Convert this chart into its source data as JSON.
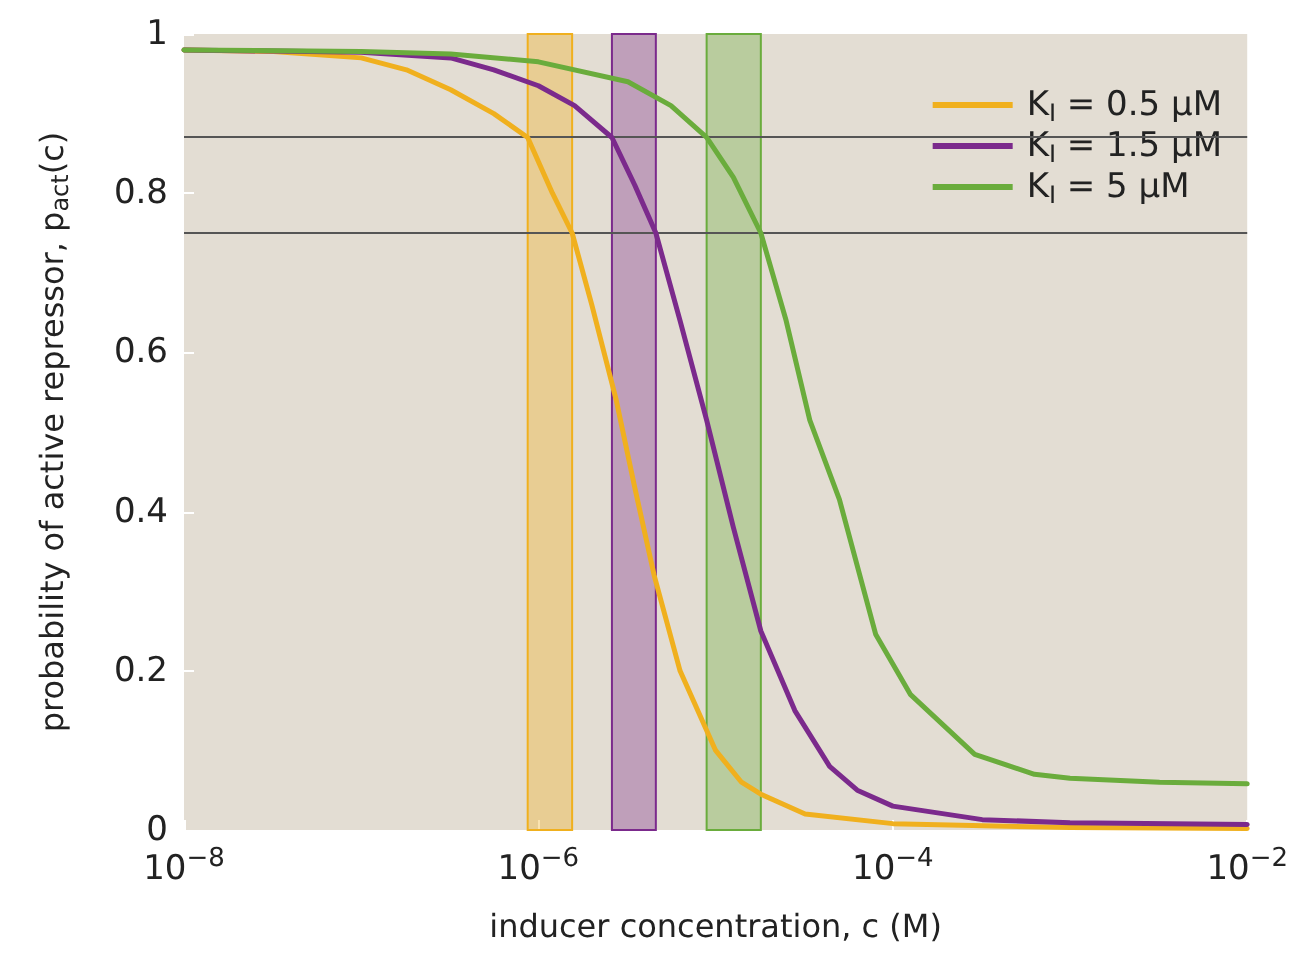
{
  "chart_data": {
    "type": "line",
    "xlabel": "inducer concentration, c (M)",
    "ylabel": "probability of active repressor, p$_{act}$(c)",
    "log": "x",
    "xlim": [
      1e-08,
      0.01
    ],
    "xticks": [
      {
        "value": 1e-08,
        "label": "10$^{−8}$"
      },
      {
        "value": 1e-06,
        "label": "10$^{−6}$"
      },
      {
        "value": 0.0001,
        "label": "10$^{−4}$"
      },
      {
        "value": 0.01,
        "label": "10$^{−2}$"
      }
    ],
    "ylim": [
      0,
      1
    ],
    "yticks": [
      0,
      0.2,
      0.4,
      0.6,
      0.8,
      1
    ],
    "grid": false,
    "legend": "top right",
    "marker": "none",
    "line_style": "solid",
    "series": [
      {
        "name": "K$_{I}$ = 0.5 μM",
        "color": "#f0b01e",
        "x": [
          1e-08,
          3.2e-08,
          1e-07,
          1.8e-07,
          3.2e-07,
          5.6e-07,
          8.7e-07,
          1.2e-06,
          1.55e-06,
          2e-06,
          2.75e-06,
          3.5e-06,
          4.5e-06,
          6.3e-06,
          1e-05,
          1.4e-05,
          1.8e-05,
          3.2e-05,
          0.0001,
          0.001,
          0.01
        ],
        "values": [
          0.98,
          0.978,
          0.97,
          0.955,
          0.93,
          0.9,
          0.87,
          0.8,
          0.75,
          0.66,
          0.54,
          0.43,
          0.32,
          0.2,
          0.1,
          0.06,
          0.045,
          0.02,
          0.008,
          0.003,
          0.002
        ]
      },
      {
        "name": "K$_{I}$ = 1.5 μM",
        "color": "#7b2a8c",
        "x": [
          1e-08,
          1e-07,
          3.2e-07,
          5.6e-07,
          1e-06,
          1.6e-06,
          2.6e-06,
          3.5e-06,
          4.6e-06,
          6.3e-06,
          8.9e-06,
          1.26e-05,
          1.8e-05,
          2.8e-05,
          4.4e-05,
          6.3e-05,
          0.0001,
          0.00032,
          0.001,
          0.01
        ],
        "values": [
          0.98,
          0.977,
          0.97,
          0.955,
          0.935,
          0.91,
          0.87,
          0.81,
          0.75,
          0.64,
          0.515,
          0.38,
          0.25,
          0.15,
          0.08,
          0.05,
          0.03,
          0.013,
          0.009,
          0.007
        ]
      },
      {
        "name": "K$_{I}$ = 5 μM",
        "color": "#6aac3c",
        "x": [
          1e-08,
          1e-07,
          3.2e-07,
          1e-06,
          3.2e-06,
          5.6e-06,
          8.9e-06,
          1.26e-05,
          1.8e-05,
          2.5e-05,
          3.4e-05,
          5e-05,
          8e-05,
          0.000126,
          0.00029,
          0.00063,
          0.001,
          0.0032,
          0.01
        ],
        "values": [
          0.98,
          0.978,
          0.975,
          0.965,
          0.94,
          0.91,
          0.87,
          0.82,
          0.75,
          0.64,
          0.515,
          0.415,
          0.246,
          0.17,
          0.095,
          0.07,
          0.065,
          0.06,
          0.058
        ]
      }
    ],
    "bands": [
      {
        "axis": "x",
        "from": 8.7e-07,
        "to": 1.55e-06,
        "color": "#f0b01e"
      },
      {
        "axis": "x",
        "from": 2.6e-06,
        "to": 4.6e-06,
        "color": "#7b2a8c"
      },
      {
        "axis": "x",
        "from": 8.9e-06,
        "to": 1.8e-05,
        "color": "#6aac3c"
      }
    ],
    "ref_lines": [
      {
        "axis": "y",
        "value": 0.87,
        "color": "#555555"
      },
      {
        "axis": "y",
        "value": 0.75,
        "color": "#555555"
      }
    ]
  }
}
